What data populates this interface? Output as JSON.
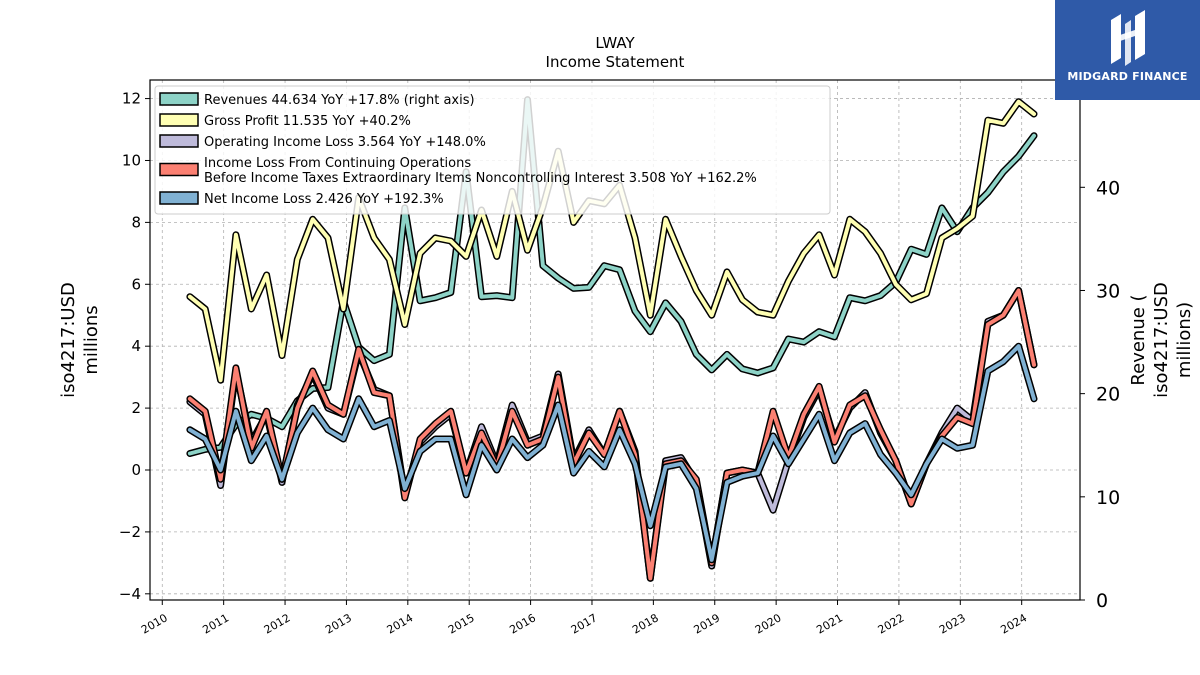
{
  "chart_data": {
    "type": "line",
    "title": "LWAY",
    "subtitle": "Income Statement",
    "ylabel_left": [
      "iso4217:USD",
      "millions"
    ],
    "ylabel_right": [
      "Revenue (",
      "iso4217:USD",
      "millions)"
    ],
    "ylim_left": [
      -4.2,
      12.6
    ],
    "ylim_right": [
      0,
      50.4
    ],
    "yticks_left": [
      -4,
      -2,
      0,
      2,
      4,
      6,
      8,
      10,
      12
    ],
    "yticks_right": [
      0,
      10,
      20,
      30,
      40
    ],
    "xlim": [
      2009.8,
      2024.95
    ],
    "xticks": [
      2010,
      2011,
      2012,
      2013,
      2014,
      2015,
      2016,
      2017,
      2018,
      2019,
      2020,
      2021,
      2022,
      2023,
      2024
    ],
    "grid": true,
    "legend_position": "top-left",
    "x": [
      2010.45,
      2010.7,
      2010.95,
      2011.2,
      2011.45,
      2011.7,
      2011.95,
      2012.2,
      2012.45,
      2012.7,
      2012.95,
      2013.2,
      2013.45,
      2013.7,
      2013.95,
      2014.2,
      2014.45,
      2014.7,
      2014.95,
      2015.2,
      2015.45,
      2015.7,
      2015.95,
      2016.2,
      2016.45,
      2016.7,
      2016.95,
      2017.2,
      2017.45,
      2017.7,
      2017.95,
      2018.2,
      2018.45,
      2018.7,
      2018.95,
      2019.2,
      2019.45,
      2019.7,
      2019.95,
      2020.2,
      2020.45,
      2020.7,
      2020.95,
      2021.2,
      2021.45,
      2021.7,
      2021.95,
      2022.2,
      2022.45,
      2022.7,
      2022.95,
      2023.2,
      2023.45,
      2023.7,
      2023.95,
      2024.2
    ],
    "series": [
      {
        "name": "Revenues  44.634 YoY +17.8% (right axis)",
        "axis": "right",
        "color": "#8dd3c7",
        "values": [
          14.2,
          14.6,
          14.8,
          17.0,
          18.0,
          17.6,
          16.8,
          19.3,
          20.5,
          20.6,
          29.0,
          24.5,
          23.2,
          23.8,
          38.0,
          29.0,
          29.3,
          29.8,
          41.5,
          29.4,
          29.5,
          29.3,
          48.5,
          32.4,
          31.2,
          30.2,
          30.3,
          32.4,
          32.0,
          28.0,
          26.0,
          28.8,
          27.0,
          23.8,
          22.3,
          23.8,
          22.4,
          22.0,
          22.5,
          25.3,
          25.0,
          26.0,
          25.5,
          29.3,
          29.0,
          29.5,
          30.8,
          34.0,
          33.5,
          38.0,
          35.7,
          38.0,
          39.5,
          41.5,
          43.0,
          45.0
        ]
      },
      {
        "name": "Gross Profit  11.535 YoY +40.2%",
        "axis": "left",
        "color": "#ffffb3",
        "values": [
          5.6,
          5.2,
          2.9,
          7.6,
          5.2,
          6.3,
          3.7,
          6.8,
          8.1,
          7.5,
          5.2,
          8.8,
          7.5,
          6.8,
          4.7,
          7.0,
          7.5,
          7.4,
          6.9,
          8.4,
          6.9,
          9.0,
          7.1,
          8.5,
          10.3,
          8.0,
          8.7,
          8.6,
          9.2,
          7.5,
          5.0,
          8.1,
          6.9,
          5.8,
          5.0,
          6.4,
          5.5,
          5.1,
          5.0,
          6.1,
          7.0,
          7.6,
          6.3,
          8.1,
          7.7,
          7.0,
          6.0,
          5.5,
          5.7,
          7.5,
          7.8,
          8.2,
          11.3,
          11.2,
          11.9,
          11.5
        ]
      },
      {
        "name": "Operating Income Loss  3.564 YoY +148.0%",
        "axis": "left",
        "color": "#bebada",
        "values": [
          2.2,
          1.8,
          -0.5,
          3.2,
          0.9,
          1.8,
          -0.4,
          2.1,
          3.1,
          2.0,
          1.8,
          3.8,
          2.6,
          2.4,
          -0.8,
          0.9,
          1.4,
          1.8,
          -0.1,
          1.4,
          0.2,
          2.1,
          0.9,
          1.1,
          3.1,
          0.3,
          1.3,
          0.5,
          1.9,
          0.6,
          -3.5,
          0.3,
          0.4,
          -0.4,
          -3.1,
          -0.1,
          0.0,
          -0.1,
          -1.3,
          0.3,
          1.7,
          2.6,
          1.0,
          2.0,
          2.5,
          1.2,
          0.3,
          -1.1,
          0.2,
          1.2,
          2.0,
          1.6,
          4.8,
          5.0,
          5.8,
          3.4
        ]
      },
      {
        "name": "Income Loss From Continuing Operations\nBefore Income Taxes Extraordinary Items Noncontrolling Interest  3.508 YoY +162.2%",
        "axis": "left",
        "color": "#fb8072",
        "values": [
          2.3,
          1.9,
          -0.3,
          3.3,
          0.7,
          1.9,
          -0.3,
          2.0,
          3.2,
          2.1,
          1.8,
          3.9,
          2.5,
          2.4,
          -0.9,
          1.0,
          1.5,
          1.9,
          -0.1,
          1.2,
          0.1,
          1.9,
          0.8,
          1.0,
          3.0,
          0.2,
          1.2,
          0.5,
          1.9,
          0.5,
          -3.5,
          0.2,
          0.3,
          -0.3,
          -3.0,
          -0.1,
          0.0,
          -0.1,
          1.9,
          0.4,
          1.8,
          2.7,
          0.9,
          2.1,
          2.4,
          1.3,
          0.3,
          -1.1,
          0.2,
          1.1,
          1.7,
          1.5,
          4.7,
          5.0,
          5.8,
          3.4
        ]
      },
      {
        "name": "Net Income Loss  2.426 YoY +192.3%",
        "axis": "left",
        "color": "#80b1d3",
        "values": [
          1.3,
          1.0,
          0.0,
          1.9,
          0.3,
          1.1,
          -0.3,
          1.2,
          2.0,
          1.3,
          1.0,
          2.3,
          1.4,
          1.6,
          -0.6,
          0.6,
          1.0,
          1.0,
          -0.8,
          0.8,
          0.0,
          1.0,
          0.4,
          0.8,
          2.1,
          -0.1,
          0.6,
          0.1,
          1.3,
          0.2,
          -1.8,
          0.1,
          0.2,
          -0.6,
          -2.9,
          -0.4,
          -0.2,
          -0.1,
          1.1,
          0.2,
          1.0,
          1.8,
          0.3,
          1.2,
          1.5,
          0.5,
          -0.1,
          -0.8,
          0.2,
          1.0,
          0.7,
          0.8,
          3.2,
          3.5,
          4.0,
          2.3
        ]
      }
    ]
  },
  "logo": {
    "text": "MIDGARD FINANCE"
  }
}
